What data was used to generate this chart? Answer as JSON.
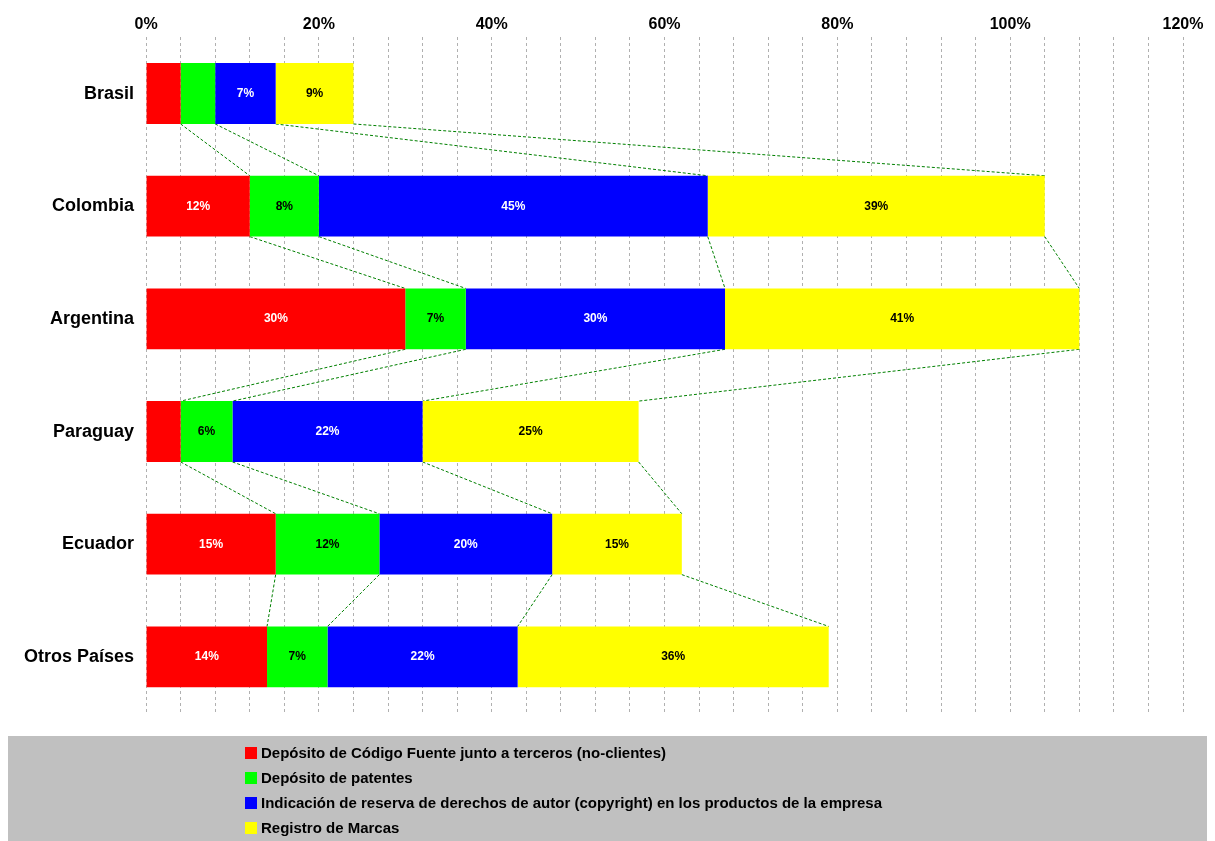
{
  "chart_data": {
    "type": "bar",
    "orientation": "horizontal",
    "stacked": true,
    "grid": "x",
    "legend": "bottom",
    "categories": [
      "Brasil",
      "Colombia",
      "Argentina",
      "Paraguay",
      "Ecuador",
      "Otros Países"
    ],
    "xlim": [
      0,
      120
    ],
    "xticks": [
      {
        "value": 0,
        "label": "0%"
      },
      {
        "value": 4,
        "label": null
      },
      {
        "value": 8,
        "label": null
      },
      {
        "value": 12,
        "label": null
      },
      {
        "value": 16,
        "label": null
      },
      {
        "value": 20,
        "label": "20%"
      },
      {
        "value": 24,
        "label": null
      },
      {
        "value": 28,
        "label": null
      },
      {
        "value": 32,
        "label": null
      },
      {
        "value": 36,
        "label": null
      },
      {
        "value": 40,
        "label": "40%"
      },
      {
        "value": 44,
        "label": null
      },
      {
        "value": 48,
        "label": null
      },
      {
        "value": 52,
        "label": null
      },
      {
        "value": 56,
        "label": null
      },
      {
        "value": 60,
        "label": "60%"
      },
      {
        "value": 64,
        "label": null
      },
      {
        "value": 68,
        "label": null
      },
      {
        "value": 72,
        "label": null
      },
      {
        "value": 76,
        "label": null
      },
      {
        "value": 80,
        "label": "80%"
      },
      {
        "value": 84,
        "label": null
      },
      {
        "value": 88,
        "label": null
      },
      {
        "value": 92,
        "label": null
      },
      {
        "value": 96,
        "label": null
      },
      {
        "value": 100,
        "label": "100%"
      },
      {
        "value": 104,
        "label": null
      },
      {
        "value": 108,
        "label": null
      },
      {
        "value": 112,
        "label": null
      },
      {
        "value": 116,
        "label": null
      },
      {
        "value": 120,
        "label": "120%"
      }
    ],
    "series": [
      {
        "name": "Depósito de Código Fuente junto a terceros (no-clientes)",
        "color": "#ff0000",
        "values": [
          4,
          12,
          30,
          4,
          15,
          14
        ],
        "value_labels": [
          null,
          "12%",
          "30%",
          null,
          "15%",
          "14%"
        ]
      },
      {
        "name": "Depósito de patentes",
        "color": "#00ff00",
        "values": [
          4,
          8,
          7,
          6,
          12,
          7
        ],
        "value_labels": [
          null,
          "8%",
          "7%",
          "6%",
          "12%",
          "7%"
        ]
      },
      {
        "name": "Indicación de reserva de derechos de autor (copyright) en los productos de la empresa",
        "color": "#0000ff",
        "values": [
          7,
          45,
          30,
          22,
          20,
          22
        ],
        "value_labels": [
          "7%",
          "45%",
          "30%",
          "22%",
          "20%",
          "22%"
        ]
      },
      {
        "name": "Registro de Marcas",
        "color": "#ffff00",
        "values": [
          9,
          39,
          41,
          25,
          15,
          36
        ],
        "value_labels": [
          "9%",
          "39%",
          "41%",
          "25%",
          "15%",
          "36%"
        ]
      }
    ]
  }
}
